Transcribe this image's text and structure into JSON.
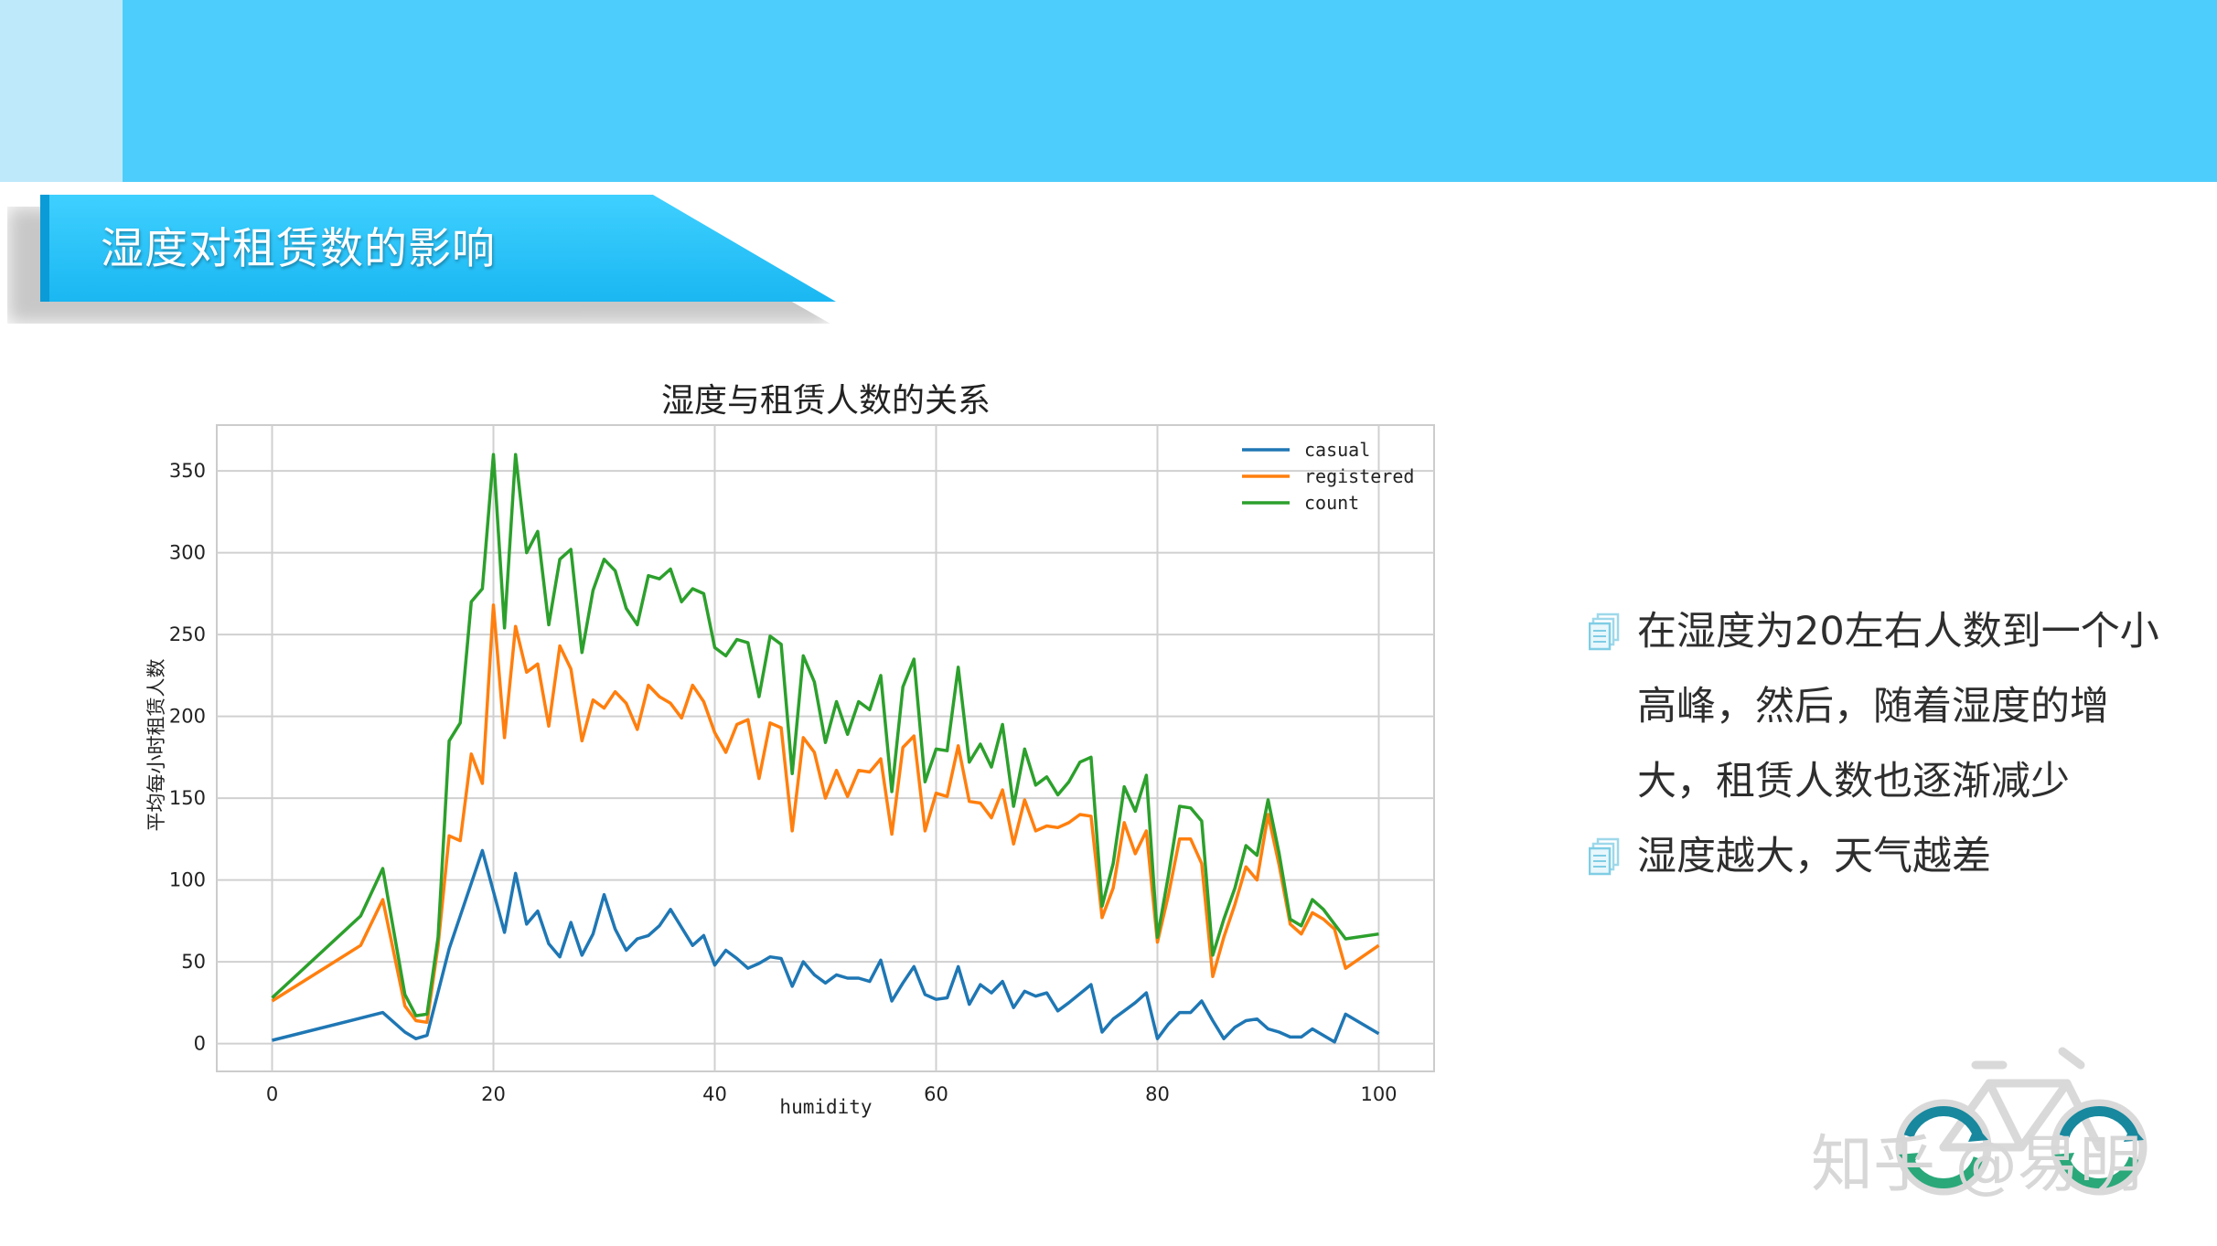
{
  "slide": {
    "section_title": "湿度对租赁数的影响",
    "watermark": "知乎 @易明"
  },
  "bullets": [
    {
      "text": "在湿度为20左右人数到一个小高峰，然后，随着湿度的增大，租赁人数也逐渐减少"
    },
    {
      "text": "湿度越大，天气越差"
    }
  ],
  "colors": {
    "banner": "#4dcdfb",
    "casual": "#1f77b4",
    "registered": "#ff7f0e",
    "count": "#2ca02c"
  },
  "chart_data": {
    "type": "line",
    "title": "湿度与租赁人数的关系",
    "xlabel": "humidity",
    "ylabel": "平均每小时租赁人数",
    "xlim": [
      -5,
      105
    ],
    "ylim": [
      -17,
      378
    ],
    "xticks": [
      0,
      20,
      40,
      60,
      80,
      100
    ],
    "yticks": [
      0,
      50,
      100,
      150,
      200,
      250,
      300,
      350
    ],
    "grid": true,
    "legend_position": "top-right",
    "series": [
      {
        "name": "casual",
        "points": [
          [
            0,
            2
          ],
          [
            10,
            19
          ],
          [
            12,
            7
          ],
          [
            13,
            3
          ],
          [
            14,
            5
          ],
          [
            16,
            58
          ],
          [
            17,
            78
          ],
          [
            19,
            118
          ],
          [
            21,
            68
          ],
          [
            22,
            104
          ],
          [
            23,
            73
          ],
          [
            24,
            81
          ],
          [
            25,
            61
          ],
          [
            26,
            53
          ],
          [
            27,
            74
          ],
          [
            28,
            54
          ],
          [
            29,
            67
          ],
          [
            30,
            91
          ],
          [
            31,
            70
          ],
          [
            32,
            57
          ],
          [
            33,
            64
          ],
          [
            34,
            66
          ],
          [
            35,
            72
          ],
          [
            36,
            82
          ],
          [
            37,
            71
          ],
          [
            38,
            60
          ],
          [
            39,
            66
          ],
          [
            40,
            48
          ],
          [
            41,
            57
          ],
          [
            42,
            52
          ],
          [
            43,
            46
          ],
          [
            44,
            49
          ],
          [
            45,
            53
          ],
          [
            46,
            52
          ],
          [
            47,
            35
          ],
          [
            48,
            50
          ],
          [
            49,
            42
          ],
          [
            50,
            37
          ],
          [
            51,
            42
          ],
          [
            52,
            40
          ],
          [
            53,
            40
          ],
          [
            54,
            38
          ],
          [
            55,
            51
          ],
          [
            56,
            26
          ],
          [
            57,
            37
          ],
          [
            58,
            47
          ],
          [
            59,
            30
          ],
          [
            60,
            27
          ],
          [
            61,
            28
          ],
          [
            62,
            47
          ],
          [
            63,
            24
          ],
          [
            64,
            36
          ],
          [
            65,
            31
          ],
          [
            66,
            38
          ],
          [
            67,
            22
          ],
          [
            68,
            32
          ],
          [
            69,
            29
          ],
          [
            70,
            31
          ],
          [
            71,
            20
          ],
          [
            72,
            25
          ],
          [
            74,
            36
          ],
          [
            75,
            7
          ],
          [
            76,
            15
          ],
          [
            77,
            20
          ],
          [
            78,
            25
          ],
          [
            79,
            31
          ],
          [
            80,
            3
          ],
          [
            81,
            12
          ],
          [
            82,
            19
          ],
          [
            83,
            19
          ],
          [
            84,
            26
          ],
          [
            85,
            14
          ],
          [
            86,
            3
          ],
          [
            87,
            10
          ],
          [
            88,
            14
          ],
          [
            89,
            15
          ],
          [
            90,
            9
          ],
          [
            91,
            7
          ],
          [
            92,
            4
          ],
          [
            93,
            4
          ],
          [
            94,
            9
          ],
          [
            96,
            1
          ],
          [
            97,
            18
          ],
          [
            100,
            6
          ]
        ]
      },
      {
        "name": "registered",
        "points": [
          [
            0,
            26
          ],
          [
            8,
            60
          ],
          [
            10,
            88
          ],
          [
            12,
            23
          ],
          [
            13,
            14
          ],
          [
            14,
            13
          ],
          [
            15,
            60
          ],
          [
            16,
            127
          ],
          [
            17,
            124
          ],
          [
            18,
            177
          ],
          [
            19,
            159
          ],
          [
            20,
            268
          ],
          [
            21,
            187
          ],
          [
            22,
            255
          ],
          [
            23,
            227
          ],
          [
            24,
            232
          ],
          [
            25,
            194
          ],
          [
            26,
            243
          ],
          [
            27,
            229
          ],
          [
            28,
            185
          ],
          [
            29,
            210
          ],
          [
            30,
            205
          ],
          [
            31,
            215
          ],
          [
            32,
            208
          ],
          [
            33,
            192
          ],
          [
            34,
            219
          ],
          [
            35,
            212
          ],
          [
            36,
            208
          ],
          [
            37,
            199
          ],
          [
            38,
            219
          ],
          [
            39,
            209
          ],
          [
            40,
            190
          ],
          [
            41,
            178
          ],
          [
            42,
            195
          ],
          [
            43,
            198
          ],
          [
            44,
            162
          ],
          [
            45,
            196
          ],
          [
            46,
            193
          ],
          [
            47,
            130
          ],
          [
            48,
            187
          ],
          [
            49,
            178
          ],
          [
            50,
            150
          ],
          [
            51,
            167
          ],
          [
            52,
            151
          ],
          [
            53,
            167
          ],
          [
            54,
            166
          ],
          [
            55,
            174
          ],
          [
            56,
            128
          ],
          [
            57,
            181
          ],
          [
            58,
            188
          ],
          [
            59,
            130
          ],
          [
            60,
            153
          ],
          [
            61,
            151
          ],
          [
            62,
            182
          ],
          [
            63,
            148
          ],
          [
            64,
            147
          ],
          [
            65,
            138
          ],
          [
            66,
            155
          ],
          [
            67,
            122
          ],
          [
            68,
            149
          ],
          [
            69,
            130
          ],
          [
            70,
            133
          ],
          [
            71,
            132
          ],
          [
            72,
            135
          ],
          [
            73,
            140
          ],
          [
            74,
            139
          ],
          [
            75,
            77
          ],
          [
            76,
            95
          ],
          [
            77,
            135
          ],
          [
            78,
            116
          ],
          [
            79,
            130
          ],
          [
            80,
            62
          ],
          [
            81,
            91
          ],
          [
            82,
            125
          ],
          [
            83,
            125
          ],
          [
            84,
            110
          ],
          [
            85,
            41
          ],
          [
            86,
            65
          ],
          [
            87,
            85
          ],
          [
            88,
            108
          ],
          [
            89,
            100
          ],
          [
            90,
            140
          ],
          [
            91,
            109
          ],
          [
            92,
            73
          ],
          [
            93,
            67
          ],
          [
            94,
            80
          ],
          [
            95,
            76
          ],
          [
            96,
            70
          ],
          [
            97,
            46
          ],
          [
            100,
            60
          ]
        ]
      },
      {
        "name": "count",
        "points": [
          [
            0,
            28
          ],
          [
            8,
            78
          ],
          [
            10,
            107
          ],
          [
            12,
            30
          ],
          [
            13,
            17
          ],
          [
            14,
            18
          ],
          [
            15,
            65
          ],
          [
            16,
            185
          ],
          [
            17,
            196
          ],
          [
            18,
            270
          ],
          [
            19,
            278
          ],
          [
            20,
            360
          ],
          [
            21,
            254
          ],
          [
            22,
            360
          ],
          [
            23,
            300
          ],
          [
            24,
            313
          ],
          [
            25,
            256
          ],
          [
            26,
            296
          ],
          [
            27,
            302
          ],
          [
            28,
            239
          ],
          [
            29,
            277
          ],
          [
            30,
            296
          ],
          [
            31,
            289
          ],
          [
            32,
            266
          ],
          [
            33,
            256
          ],
          [
            34,
            286
          ],
          [
            35,
            284
          ],
          [
            36,
            290
          ],
          [
            37,
            270
          ],
          [
            38,
            278
          ],
          [
            39,
            275
          ],
          [
            40,
            242
          ],
          [
            41,
            237
          ],
          [
            42,
            247
          ],
          [
            43,
            245
          ],
          [
            44,
            212
          ],
          [
            45,
            249
          ],
          [
            46,
            244
          ],
          [
            47,
            165
          ],
          [
            48,
            237
          ],
          [
            49,
            221
          ],
          [
            50,
            184
          ],
          [
            51,
            209
          ],
          [
            52,
            189
          ],
          [
            53,
            209
          ],
          [
            54,
            204
          ],
          [
            55,
            225
          ],
          [
            56,
            154
          ],
          [
            57,
            218
          ],
          [
            58,
            235
          ],
          [
            59,
            160
          ],
          [
            60,
            180
          ],
          [
            61,
            179
          ],
          [
            62,
            230
          ],
          [
            63,
            172
          ],
          [
            64,
            183
          ],
          [
            65,
            169
          ],
          [
            66,
            195
          ],
          [
            67,
            145
          ],
          [
            68,
            180
          ],
          [
            69,
            158
          ],
          [
            70,
            163
          ],
          [
            71,
            152
          ],
          [
            72,
            160
          ],
          [
            73,
            172
          ],
          [
            74,
            175
          ],
          [
            75,
            84
          ],
          [
            76,
            110
          ],
          [
            77,
            157
          ],
          [
            78,
            142
          ],
          [
            79,
            164
          ],
          [
            80,
            65
          ],
          [
            81,
            103
          ],
          [
            82,
            145
          ],
          [
            83,
            144
          ],
          [
            84,
            136
          ],
          [
            85,
            54
          ],
          [
            86,
            76
          ],
          [
            87,
            95
          ],
          [
            88,
            121
          ],
          [
            89,
            115
          ],
          [
            90,
            149
          ],
          [
            91,
            116
          ],
          [
            92,
            76
          ],
          [
            93,
            72
          ],
          [
            94,
            88
          ],
          [
            95,
            82
          ],
          [
            96,
            73
          ],
          [
            97,
            64
          ],
          [
            100,
            67
          ]
        ]
      }
    ]
  }
}
